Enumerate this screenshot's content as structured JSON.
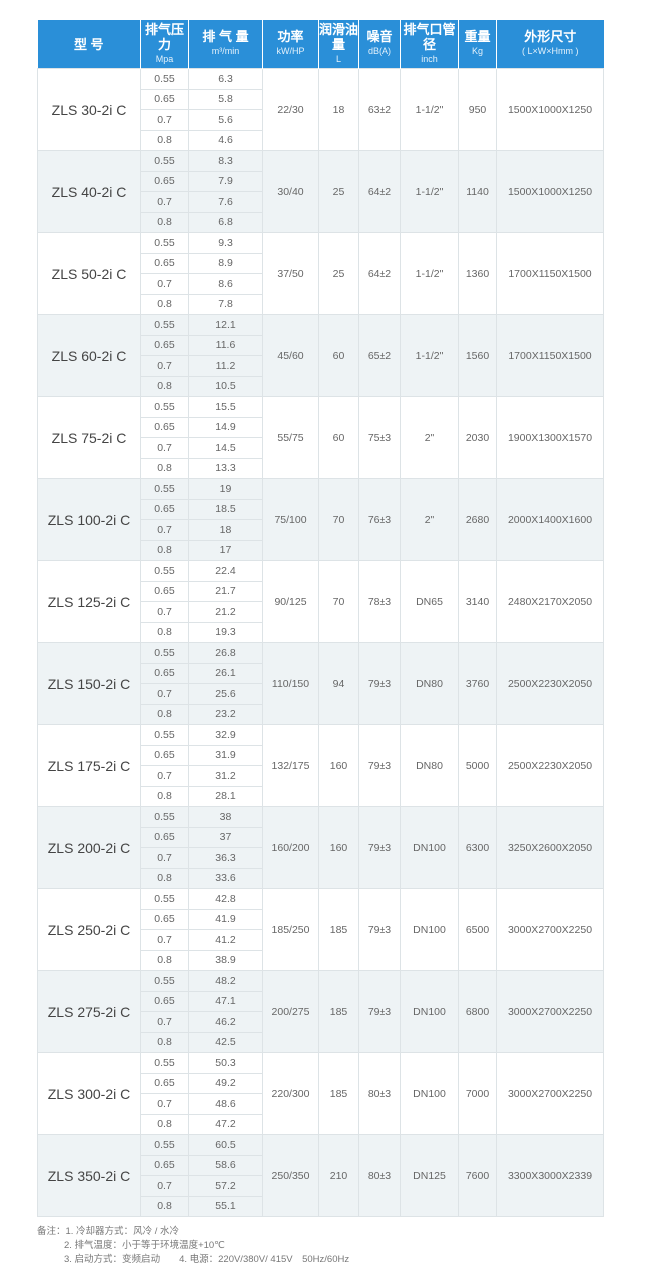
{
  "headers": [
    {
      "title": "型 号",
      "sub": ""
    },
    {
      "title": "排气压力",
      "sub": "Mpa"
    },
    {
      "title": "排 气 量",
      "sub": "m³/min"
    },
    {
      "title": "功率",
      "sub": "kW/HP"
    },
    {
      "title": "润滑油量",
      "sub": "L"
    },
    {
      "title": "噪音",
      "sub": "dB(A)"
    },
    {
      "title": "排气口管径",
      "sub": "inch"
    },
    {
      "title": "重量",
      "sub": "Kg"
    },
    {
      "title": "外形尺寸",
      "sub": "( L×W×Hmm )"
    }
  ],
  "pressures": [
    "0.55",
    "0.65",
    "0.7",
    "0.8"
  ],
  "rows": [
    {
      "model": "ZLS 30-2i C",
      "flow": [
        "6.3",
        "5.8",
        "5.6",
        "4.6"
      ],
      "power": "22/30",
      "oil": "18",
      "noise": "63±2",
      "pipe": "1-1/2\"",
      "weight": "950",
      "dims": "1500X1000X1250"
    },
    {
      "model": "ZLS 40-2i C",
      "flow": [
        "8.3",
        "7.9",
        "7.6",
        "6.8"
      ],
      "power": "30/40",
      "oil": "25",
      "noise": "64±2",
      "pipe": "1-1/2\"",
      "weight": "1140",
      "dims": "1500X1000X1250"
    },
    {
      "model": "ZLS 50-2i C",
      "flow": [
        "9.3",
        "8.9",
        "8.6",
        "7.8"
      ],
      "power": "37/50",
      "oil": "25",
      "noise": "64±2",
      "pipe": "1-1/2\"",
      "weight": "1360",
      "dims": "1700X1150X1500"
    },
    {
      "model": "ZLS 60-2i C",
      "flow": [
        "12.1",
        "11.6",
        "11.2",
        "10.5"
      ],
      "power": "45/60",
      "oil": "60",
      "noise": "65±2",
      "pipe": "1-1/2\"",
      "weight": "1560",
      "dims": "1700X1150X1500"
    },
    {
      "model": "ZLS 75-2i C",
      "flow": [
        "15.5",
        "14.9",
        "14.5",
        "13.3"
      ],
      "power": "55/75",
      "oil": "60",
      "noise": "75±3",
      "pipe": "2\"",
      "weight": "2030",
      "dims": "1900X1300X1570"
    },
    {
      "model": "ZLS 100-2i C",
      "flow": [
        "19",
        "18.5",
        "18",
        "17"
      ],
      "power": "75/100",
      "oil": "70",
      "noise": "76±3",
      "pipe": "2\"",
      "weight": "2680",
      "dims": "2000X1400X1600"
    },
    {
      "model": "ZLS 125-2i C",
      "flow": [
        "22.4",
        "21.7",
        "21.2",
        "19.3"
      ],
      "power": "90/125",
      "oil": "70",
      "noise": "78±3",
      "pipe": "DN65",
      "weight": "3140",
      "dims": "2480X2170X2050"
    },
    {
      "model": "ZLS 150-2i C",
      "flow": [
        "26.8",
        "26.1",
        "25.6",
        "23.2"
      ],
      "power": "110/150",
      "oil": "94",
      "noise": "79±3",
      "pipe": "DN80",
      "weight": "3760",
      "dims": "2500X2230X2050"
    },
    {
      "model": "ZLS 175-2i C",
      "flow": [
        "32.9",
        "31.9",
        "31.2",
        "28.1"
      ],
      "power": "132/175",
      "oil": "160",
      "noise": "79±3",
      "pipe": "DN80",
      "weight": "5000",
      "dims": "2500X2230X2050"
    },
    {
      "model": "ZLS 200-2i C",
      "flow": [
        "38",
        "37",
        "36.3",
        "33.6"
      ],
      "power": "160/200",
      "oil": "160",
      "noise": "79±3",
      "pipe": "DN100",
      "weight": "6300",
      "dims": "3250X2600X2050"
    },
    {
      "model": "ZLS 250-2i C",
      "flow": [
        "42.8",
        "41.9",
        "41.2",
        "38.9"
      ],
      "power": "185/250",
      "oil": "185",
      "noise": "79±3",
      "pipe": "DN100",
      "weight": "6500",
      "dims": "3000X2700X2250"
    },
    {
      "model": "ZLS 275-2i C",
      "flow": [
        "48.2",
        "47.1",
        "46.2",
        "42.5"
      ],
      "power": "200/275",
      "oil": "185",
      "noise": "79±3",
      "pipe": "DN100",
      "weight": "6800",
      "dims": "3000X2700X2250"
    },
    {
      "model": "ZLS 300-2i C",
      "flow": [
        "50.3",
        "49.2",
        "48.6",
        "47.2"
      ],
      "power": "220/300",
      "oil": "185",
      "noise": "80±3",
      "pipe": "DN100",
      "weight": "7000",
      "dims": "3000X2700X2250"
    },
    {
      "model": "ZLS 350-2i C",
      "flow": [
        "60.5",
        "58.6",
        "57.2",
        "55.1"
      ],
      "power": "250/350",
      "oil": "210",
      "noise": "80±3",
      "pipe": "DN125",
      "weight": "7600",
      "dims": "3300X3000X2339"
    }
  ],
  "notes": [
    "备注：1. 冷却器方式：风冷 / 水冷",
    "2. 排气温度：小于等于环境温度+10℃",
    "3. 启动方式：变频启动　　4. 电源：220V/380V/ 415V　50Hz/60Hz"
  ]
}
